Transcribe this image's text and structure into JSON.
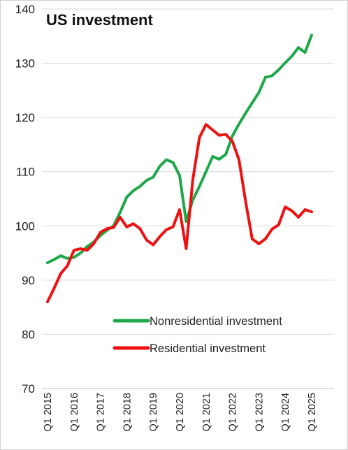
{
  "chart_data": {
    "type": "line",
    "title": "US investment",
    "xlabel": "",
    "ylabel": "",
    "ylim": [
      70,
      140
    ],
    "yticks": [
      70,
      80,
      90,
      100,
      110,
      120,
      130,
      140
    ],
    "grid": "horizontal",
    "legend_position": "bottom-center",
    "x": [
      "Q1 2015",
      "Q2 2015",
      "Q3 2015",
      "Q4 2015",
      "Q1 2016",
      "Q2 2016",
      "Q3 2016",
      "Q4 2016",
      "Q1 2017",
      "Q2 2017",
      "Q3 2017",
      "Q4 2017",
      "Q1 2018",
      "Q2 2018",
      "Q3 2018",
      "Q4 2018",
      "Q1 2019",
      "Q2 2019",
      "Q3 2019",
      "Q4 2019",
      "Q1 2020",
      "Q2 2020",
      "Q3 2020",
      "Q4 2020",
      "Q1 2021",
      "Q2 2021",
      "Q3 2021",
      "Q4 2021",
      "Q1 2022",
      "Q2 2022",
      "Q3 2022",
      "Q4 2022",
      "Q1 2023",
      "Q2 2023",
      "Q3 2023",
      "Q4 2023",
      "Q1 2024",
      "Q2 2024",
      "Q3 2024",
      "Q4 2024",
      "Q1 2025",
      "Q2 2025"
    ],
    "xtick_labels": [
      "Q1 2015",
      "Q1 2016",
      "Q1 2017",
      "Q1 2018",
      "Q1 2019",
      "Q1 2020",
      "Q1 2021",
      "Q1 2022",
      "Q1 2023",
      "Q1 2024",
      "Q1 2025"
    ],
    "series": [
      {
        "name": "Nonresidential investment",
        "color": "#1fa84a",
        "values": [
          93.2,
          93.8,
          94.5,
          94.0,
          94.2,
          95.0,
          96.2,
          97.0,
          98.2,
          99.2,
          100.0,
          102.5,
          105.3,
          106.5,
          107.3,
          108.4,
          109.0,
          111.0,
          112.2,
          111.7,
          109.3,
          100.8,
          104.8,
          107.3,
          110.0,
          112.8,
          112.3,
          113.2,
          116.6,
          118.8,
          120.8,
          122.7,
          124.6,
          127.4,
          127.7,
          128.8,
          130.1,
          131.3,
          132.9,
          132.0,
          135.2,
          null
        ]
      },
      {
        "name": "Residential investment",
        "color": "#ee1111",
        "values": [
          86.0,
          88.5,
          91.2,
          92.6,
          95.5,
          95.8,
          95.5,
          96.7,
          98.8,
          99.5,
          99.7,
          101.6,
          99.8,
          100.4,
          99.5,
          97.4,
          96.5,
          98.0,
          99.3,
          99.8,
          103.0,
          95.8,
          108.5,
          116.3,
          118.7,
          117.7,
          116.7,
          116.9,
          115.6,
          112.2,
          104.5,
          97.6,
          96.7,
          97.6,
          99.4,
          100.2,
          103.5,
          102.8,
          101.6,
          103.0,
          102.6,
          null
        ]
      }
    ]
  }
}
